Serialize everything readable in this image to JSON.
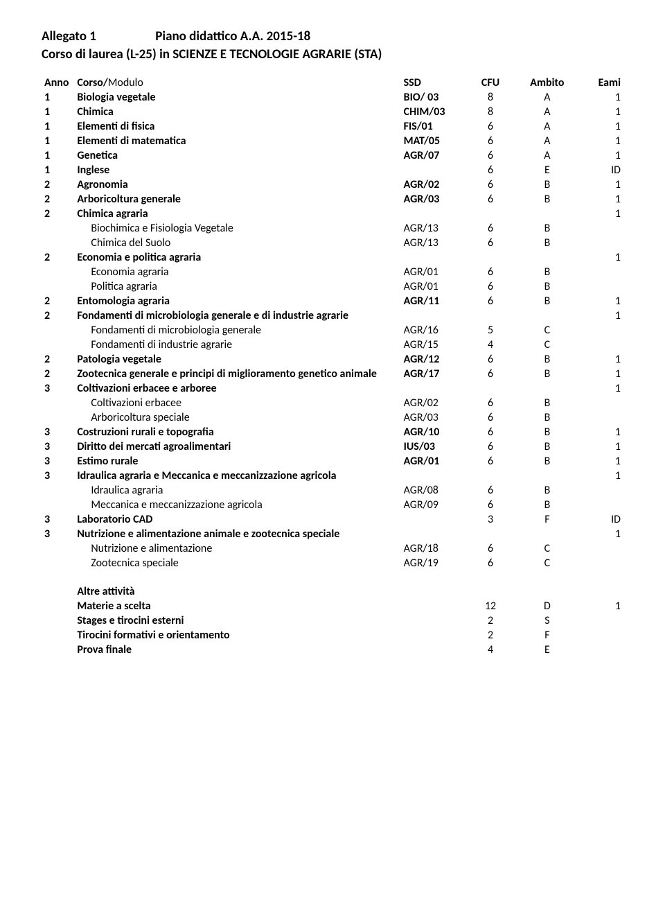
{
  "header": {
    "allegato": "Allegato 1",
    "piano": "Piano didattico A.A. 2015-18",
    "corso": "Corso di laurea  (L-25) in SCIENZE E TECNOLOGIE AGRARIE  (STA)"
  },
  "columns": {
    "anno": "Anno",
    "name": "Corso/",
    "name_mod": "Modulo",
    "ssd": "SSD",
    "cfu": "CFU",
    "ambito": "Ambito",
    "eami": "Eami"
  },
  "rows": [
    {
      "a": "1",
      "n": "Biologia vegetale",
      "s": "BIO/ 03",
      "c": "8",
      "m": "A",
      "e": "1",
      "b": true
    },
    {
      "a": "1",
      "n": "Chimica",
      "s": "CHIM/03",
      "c": "8",
      "m": "A",
      "e": "1",
      "b": true
    },
    {
      "a": "1",
      "n": "Elementi di fisica",
      "s": "FIS/01",
      "c": "6",
      "m": "A",
      "e": "1",
      "b": true
    },
    {
      "a": "1",
      "n": "Elementi di matematica",
      "s": "MAT/05",
      "c": "6",
      "m": "A",
      "e": "1",
      "b": true
    },
    {
      "a": "1",
      "n": "Genetica",
      "s": "AGR/07",
      "c": "6",
      "m": "A",
      "e": "1",
      "b": true
    },
    {
      "a": "1",
      "n": "Inglese",
      "s": "",
      "c": "6",
      "m": "E",
      "e": "ID",
      "b": true
    },
    {
      "a": "2",
      "n": "Agronomia",
      "s": "AGR/02",
      "c": "6",
      "m": "B",
      "e": "1",
      "b": true
    },
    {
      "a": "2",
      "n": "Arboricoltura generale",
      "s": "AGR/03",
      "c": "6",
      "m": "B",
      "e": "1",
      "b": true
    },
    {
      "a": "2",
      "n": "Chimica agraria",
      "s": "",
      "c": "",
      "m": "",
      "e": "1",
      "b": true
    },
    {
      "a": "",
      "n": "Biochimica e Fisiologia Vegetale",
      "s": "AGR/13",
      "c": "6",
      "m": "B",
      "e": "",
      "sub": true
    },
    {
      "a": "",
      "n": "Chimica del Suolo",
      "s": "AGR/13",
      "c": "6",
      "m": "B",
      "e": "",
      "sub": true
    },
    {
      "a": "2",
      "n": "Economia e politica agraria",
      "s": "",
      "c": "",
      "m": "",
      "e": "1",
      "b": true
    },
    {
      "a": "",
      "n": "Economia agraria",
      "s": "AGR/01",
      "c": "6",
      "m": "B",
      "e": "",
      "sub": true
    },
    {
      "a": "",
      "n": "Politica agraria",
      "s": "AGR/01",
      "c": "6",
      "m": "B",
      "e": "",
      "sub": true
    },
    {
      "a": "2",
      "n": "Entomologia agraria",
      "s": "AGR/11",
      "c": "6",
      "m": "B",
      "e": "1",
      "b": true
    },
    {
      "a": "2",
      "n": "Fondamenti di microbiologia generale e di industrie agrarie",
      "s": "",
      "c": "",
      "m": "",
      "e": "1",
      "b": true
    },
    {
      "a": "",
      "n": "Fondamenti di microbiologia generale",
      "s": "AGR/16",
      "c": "5",
      "m": "C",
      "e": "",
      "sub": true
    },
    {
      "a": "",
      "n": "Fondamenti di industrie agrarie",
      "s": "AGR/15",
      "c": "4",
      "m": "C",
      "e": "",
      "sub": true
    },
    {
      "a": "2",
      "n": "Patologia vegetale",
      "s": "AGR/12",
      "c": "6",
      "m": "B",
      "e": "1",
      "b": true
    },
    {
      "a": "2",
      "n": "Zootecnica generale e principi di miglioramento genetico animale",
      "s": "AGR/17",
      "c": "6",
      "m": "B",
      "e": "1",
      "b": true
    },
    {
      "a": "3",
      "n": "Coltivazioni  erbacee e arboree",
      "s": "",
      "c": "",
      "m": "",
      "e": "1",
      "b": true
    },
    {
      "a": "",
      "n": "Coltivazioni erbacee",
      "s": "AGR/02",
      "c": "6",
      "m": "B",
      "e": "",
      "sub": true
    },
    {
      "a": "",
      "n": "Arboricoltura speciale",
      "s": "AGR/03",
      "c": "6",
      "m": "B",
      "e": "",
      "sub": true
    },
    {
      "a": "3",
      "n": "Costruzioni rurali e topografia",
      "s": "AGR/10",
      "c": "6",
      "m": "B",
      "e": "1",
      "b": true
    },
    {
      "a": "3",
      "n": "Diritto dei mercati agroalimentari",
      "s": "IUS/03",
      "c": "6",
      "m": "B",
      "e": "1",
      "b": true
    },
    {
      "a": "3",
      "n": "Estimo rurale",
      "s": "AGR/01",
      "c": "6",
      "m": "B",
      "e": "1",
      "b": true
    },
    {
      "a": "3",
      "n": "Idraulica agraria e Meccanica e meccanizzazione agricola",
      "s": "",
      "c": "",
      "m": "",
      "e": "1",
      "b": true
    },
    {
      "a": "",
      "n": "Idraulica agraria",
      "s": "AGR/08",
      "c": "6",
      "m": "B",
      "e": "",
      "sub": true
    },
    {
      "a": "",
      "n": "Meccanica e meccanizzazione agricola",
      "s": "AGR/09",
      "c": "6",
      "m": "B",
      "e": "",
      "sub": true
    },
    {
      "a": "3",
      "n": "Laboratorio CAD",
      "s": "",
      "c": "3",
      "m": "F",
      "e": "ID",
      "b": true
    },
    {
      "a": "3",
      "n": "Nutrizione e alimentazione animale e zootecnica speciale",
      "s": "",
      "c": "",
      "m": "",
      "e": "1",
      "b": true
    },
    {
      "a": "",
      "n": "Nutrizione e alimentazione",
      "s": "AGR/18",
      "c": "6",
      "m": "C",
      "e": "",
      "sub": true
    },
    {
      "a": "",
      "n": "Zootecnica speciale",
      "s": "AGR/19",
      "c": "6",
      "m": "C",
      "e": "",
      "sub": true
    }
  ],
  "altre": {
    "title": "Altre attività",
    "rows": [
      {
        "n": "Materie a scelta",
        "c": "12",
        "m": "D",
        "e": "1",
        "b": true
      },
      {
        "n": "Stages e tirocini esterni",
        "c": "2",
        "m": "S",
        "e": "",
        "b": true
      },
      {
        "n": "Tirocini formativi e orientamento",
        "c": "2",
        "m": "F",
        "e": "",
        "b": true
      },
      {
        "n": "Prova finale",
        "c": "4",
        "m": "E",
        "e": "",
        "b": true
      }
    ]
  }
}
